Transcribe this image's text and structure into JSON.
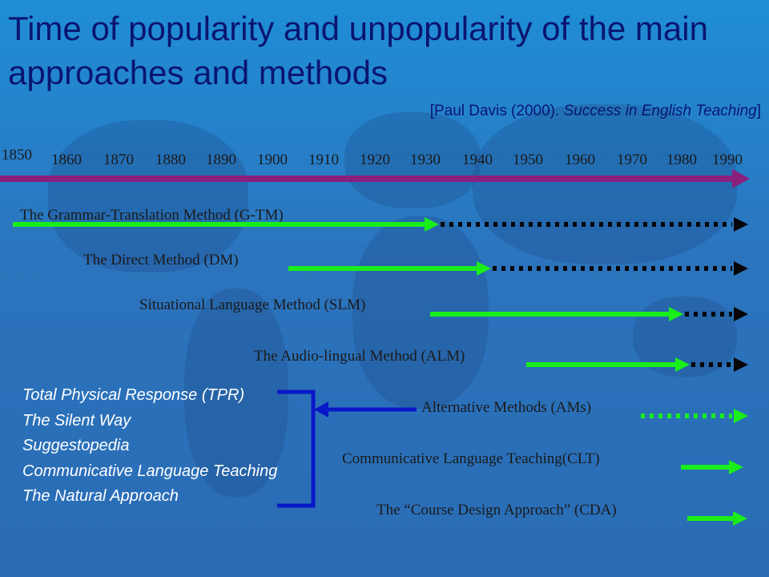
{
  "title": "Time of popularity and unpopularity of the main approaches and methods",
  "citation": {
    "prefix": "[Paul Davis (2000). ",
    "italic": "Success in English Teaching",
    "suffix": "]"
  },
  "timeline": {
    "years": [
      "1850",
      "1860",
      "1870",
      "1880",
      "1890",
      "1900",
      "1910",
      "1920",
      "1930",
      "1940",
      "1950",
      "1960",
      "1970",
      "1980",
      "1990"
    ]
  },
  "methods": [
    {
      "label": "The Grammar-Translation Method (G-TM)",
      "popular_from": 1850,
      "popular_to": 1930,
      "unpopular_to": 1990
    },
    {
      "label": "The Direct Method (DM)",
      "popular_from": 1900,
      "popular_to": 1940,
      "unpopular_to": 1990
    },
    {
      "label": "Situational Language Method (SLM)",
      "popular_from": 1930,
      "popular_to": 1980,
      "unpopular_to": 1990
    },
    {
      "label": "The Audio-lingual Method (ALM)",
      "popular_from": 1950,
      "popular_to": 1980,
      "unpopular_to": 1990
    },
    {
      "label": "Alternative Methods (AMs)",
      "popular_from": 1970,
      "popular_to": 1970,
      "unpopular_to": 1990
    },
    {
      "label": "Communicative Language Teaching(CLT)",
      "popular_from": 1980,
      "popular_to": 1990,
      "unpopular_to": 1990
    },
    {
      "label": "The “Course Design Approach” (CDA)",
      "popular_from": 1980,
      "popular_to": 1990,
      "unpopular_to": 1990
    }
  ],
  "alternative_methods": [
    "Total Physical Response (TPR)",
    "The Silent Way",
    "Suggestopedia",
    "Communicative Language Teaching",
    "The Natural Approach"
  ],
  "colors": {
    "popular": "#1aee1a",
    "unpopular": "#050505",
    "timeline": "#8b1f7c",
    "bracket": "#0a18c8",
    "title": "#0a1570"
  }
}
